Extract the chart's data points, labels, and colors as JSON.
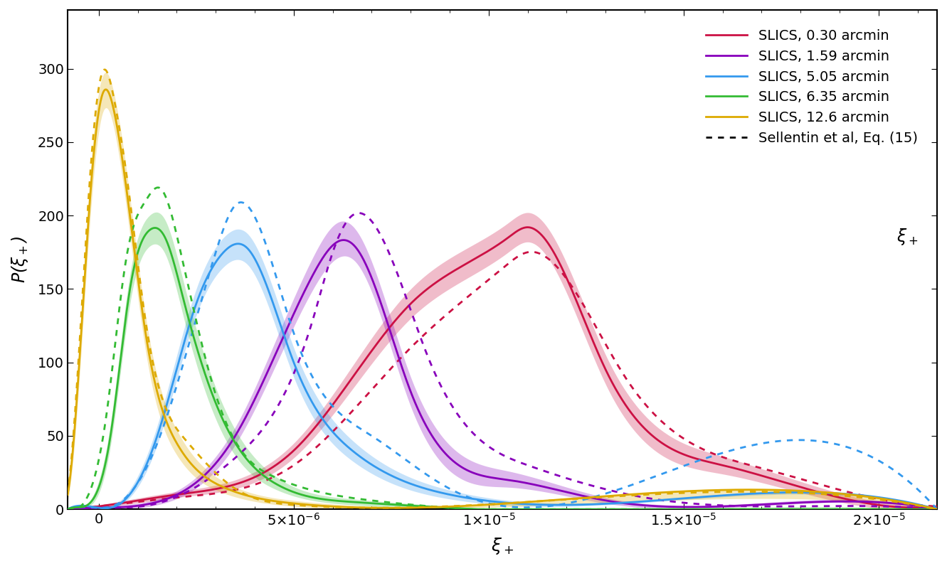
{
  "title": "",
  "xlabel": "ξ_+",
  "ylabel": "P(ξ_+)",
  "xlim": [
    -8e-07,
    2.15e-05
  ],
  "ylim": [
    0,
    340
  ],
  "yticks": [
    0,
    50,
    100,
    150,
    200,
    250,
    300
  ],
  "series": [
    {
      "label": "SLICS, 0.30 arcmin",
      "color": "#CC1144",
      "nodes_x": [
        -8e-07,
        0.0,
        2e-06,
        5e-06,
        8e-06,
        1.05e-05,
        1.1e-05,
        1.3e-05,
        1.6e-05,
        1.9e-05,
        2.15e-05
      ],
      "nodes_y": [
        0,
        2,
        10,
        40,
        140,
        185,
        192,
        95,
        30,
        8,
        2
      ],
      "nodes_y_lo": [
        0,
        1,
        8,
        35,
        130,
        175,
        182,
        85,
        24,
        5,
        1
      ],
      "nodes_y_hi": [
        0,
        3,
        12,
        45,
        150,
        195,
        202,
        105,
        36,
        11,
        3
      ],
      "dot_nodes_x": [
        -8e-07,
        0.0,
        2e-06,
        5e-06,
        8e-06,
        1.04e-05,
        1.1e-05,
        1.35e-05,
        1.7e-05,
        2e-05,
        2.15e-05
      ],
      "dot_nodes_y": [
        0,
        2,
        8,
        30,
        110,
        165,
        175,
        90,
        28,
        7,
        2
      ]
    },
    {
      "label": "SLICS, 1.59 arcmin",
      "color": "#8800BB",
      "nodes_x": [
        -8e-07,
        0.0,
        1.5e-06,
        3.5e-06,
        5.5e-06,
        6.2e-06,
        6.6e-06,
        8e-06,
        1.05e-05,
        1.3e-05,
        1.6e-05,
        2.15e-05
      ],
      "nodes_y": [
        0,
        1,
        5,
        50,
        160,
        183,
        178,
        80,
        20,
        6,
        2,
        0
      ],
      "nodes_y_lo": [
        0,
        0,
        3,
        44,
        150,
        172,
        168,
        70,
        15,
        4,
        1,
        0
      ],
      "nodes_y_hi": [
        0,
        2,
        7,
        56,
        172,
        196,
        190,
        90,
        26,
        8,
        3,
        0
      ],
      "dot_nodes_x": [
        -8e-07,
        0.0,
        1.5e-06,
        3.5e-06,
        5.5e-06,
        6e-06,
        6.5e-06,
        8.5e-06,
        1.1e-05,
        1.4e-05,
        1.7e-05,
        2.15e-05
      ],
      "dot_nodes_y": [
        0,
        1,
        4,
        35,
        130,
        175,
        200,
        100,
        30,
        8,
        2,
        0
      ]
    },
    {
      "label": "SLICS, 5.05 arcmin",
      "color": "#3399EE",
      "nodes_x": [
        -8e-07,
        0.0,
        5e-07,
        1.5e-06,
        2.5e-06,
        3.2e-06,
        3.8e-06,
        5e-06,
        6.5e-06,
        9e-06,
        1.2e-05,
        2.15e-05
      ],
      "nodes_y": [
        0,
        1,
        3,
        50,
        140,
        175,
        178,
        100,
        40,
        10,
        3,
        0
      ],
      "nodes_y_lo": [
        0,
        0,
        2,
        44,
        132,
        165,
        167,
        90,
        33,
        7,
        2,
        0
      ],
      "nodes_y_hi": [
        0,
        2,
        5,
        57,
        150,
        185,
        188,
        110,
        47,
        13,
        4,
        0
      ],
      "dot_nodes_x": [
        -8e-07,
        0.0,
        5e-07,
        1.5e-06,
        2.5e-06,
        3e-06,
        3.5e-06,
        5e-06,
        7e-06,
        9e-06,
        1.2e-05,
        2.15e-05
      ],
      "dot_nodes_y": [
        0,
        1,
        4,
        45,
        130,
        175,
        207,
        120,
        50,
        14,
        4,
        0
      ]
    },
    {
      "label": "SLICS, 6.35 arcmin",
      "color": "#33BB33",
      "nodes_x": [
        -8e-07,
        -2e-07,
        3e-07,
        8e-07,
        1.3e-06,
        1.7e-06,
        2.2e-06,
        3.2e-06,
        4.5e-06,
        6.5e-06,
        9e-06,
        2.15e-05
      ],
      "nodes_y": [
        0,
        5,
        50,
        150,
        190,
        185,
        140,
        60,
        18,
        5,
        1,
        0
      ],
      "nodes_y_lo": [
        0,
        3,
        43,
        140,
        179,
        174,
        128,
        50,
        14,
        3,
        0,
        0
      ],
      "nodes_y_hi": [
        0,
        7,
        58,
        160,
        200,
        197,
        152,
        70,
        23,
        7,
        2,
        0
      ],
      "dot_nodes_x": [
        -8e-07,
        -3e-07,
        2e-07,
        7e-07,
        1.2e-06,
        1.6e-06,
        2.1e-06,
        3e-06,
        4.5e-06,
        7e-06,
        9e-06,
        2.15e-05
      ],
      "dot_nodes_y": [
        0,
        8,
        65,
        170,
        210,
        218,
        175,
        78,
        22,
        6,
        1,
        0
      ]
    },
    {
      "label": "SLICS, 12.6 arcmin",
      "color": "#DDAA00",
      "nodes_x": [
        -8e-07,
        -5e-07,
        -2e-07,
        1e-07,
        4e-07,
        7e-07,
        1.2e-06,
        2e-06,
        3.2e-06,
        5e-06,
        7e-06,
        2.15e-05
      ],
      "nodes_y": [
        10,
        100,
        220,
        283,
        270,
        220,
        120,
        45,
        15,
        4,
        1,
        0
      ],
      "nodes_y_lo": [
        6,
        88,
        205,
        270,
        258,
        207,
        108,
        37,
        11,
        2,
        0,
        0
      ],
      "nodes_y_hi": [
        14,
        112,
        235,
        295,
        282,
        233,
        132,
        54,
        19,
        6,
        2,
        0
      ],
      "dot_nodes_x": [
        -8e-07,
        -5e-07,
        -2e-07,
        1e-07,
        4e-07,
        7e-07,
        1.2e-06,
        2.2e-06,
        3.5e-06,
        5e-06,
        7e-06,
        2.15e-05
      ],
      "dot_nodes_y": [
        10,
        110,
        235,
        298,
        278,
        230,
        128,
        48,
        14,
        3,
        1,
        0
      ]
    }
  ],
  "sellentin_label": "Sellentin et al, Eq. (15)",
  "xi_plus_label": "$\\xi_+$",
  "background_color": "#ffffff",
  "legend_fontsize": 14,
  "axis_fontsize": 16,
  "tick_fontsize": 14
}
